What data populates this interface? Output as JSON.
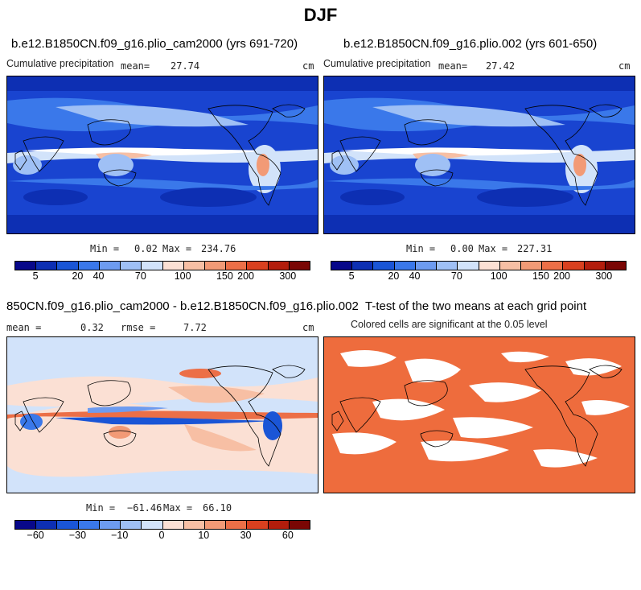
{
  "title": "DJF",
  "panels": [
    {
      "title": "b.e12.B1850CN.f09_g16.plio_cam2000 (yrs 691-720)",
      "left_label": "Cumulative precipitation",
      "mean_label": "mean=",
      "mean_value": "27.74",
      "units": "cm",
      "min_label": "Min =",
      "min_value": "0.02",
      "max_label": "Max =",
      "max_value": "234.76"
    },
    {
      "title": "b.e12.B1850CN.f09_g16.plio.002 (yrs 601-650)",
      "left_label": "Cumulative precipitation",
      "mean_label": "mean=",
      "mean_value": "27.42",
      "units": "cm",
      "min_label": "Min =",
      "min_value": "0.00",
      "max_label": "Max =",
      "max_value": "227.31"
    },
    {
      "title": "850CN.f09_g16.plio_cam2000 - b.e12.B1850CN.f09_g16.plio.002",
      "mean_label": "mean =",
      "mean_value": "0.32",
      "rmse_label": "rmse =",
      "rmse_value": "7.72",
      "units": "cm",
      "min_label": "Min =",
      "min_value": "−61.46",
      "max_label": "Max =",
      "max_value": "66.10"
    },
    {
      "title": "T-test of the two means at each grid point",
      "subtitle": "Colored cells are significant at the 0.05 level"
    }
  ],
  "precip_colorbar": {
    "colors": [
      "#08088a",
      "#0d2fb3",
      "#1a55d6",
      "#3a78ea",
      "#6d9bf0",
      "#9fc0f5",
      "#d2e3fa",
      "#fbe0d4",
      "#f7bfa4",
      "#f29a76",
      "#ec6f47",
      "#d9401f",
      "#b31d0c",
      "#7a0604"
    ],
    "ticks": [
      "5",
      "20",
      "40",
      "70",
      "100",
      "150",
      "200",
      "300"
    ]
  },
  "diff_colorbar": {
    "colors": [
      "#08088a",
      "#0d2fb3",
      "#1a55d6",
      "#3a78ea",
      "#6d9bf0",
      "#9fc0f5",
      "#d2e3fa",
      "#fbe0d4",
      "#f7bfa4",
      "#f29a76",
      "#ec6f47",
      "#d9401f",
      "#b31d0c",
      "#7a0604"
    ],
    "ticks": [
      "−60",
      "−30",
      "−10",
      "0",
      "10",
      "30",
      "60"
    ]
  },
  "ttest_color": "#ee6c3d"
}
